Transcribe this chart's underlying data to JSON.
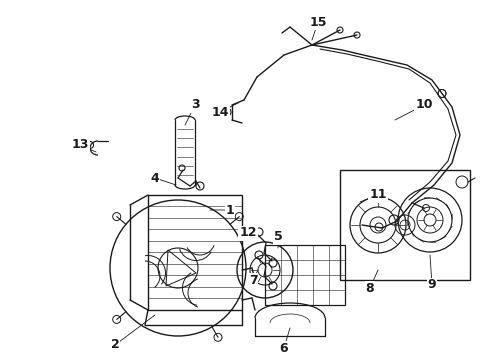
{
  "background_color": "#ffffff",
  "line_color": "#1a1a1a",
  "figsize": [
    4.9,
    3.6
  ],
  "dpi": 100,
  "font_size": 9,
  "font_size_bold": true
}
